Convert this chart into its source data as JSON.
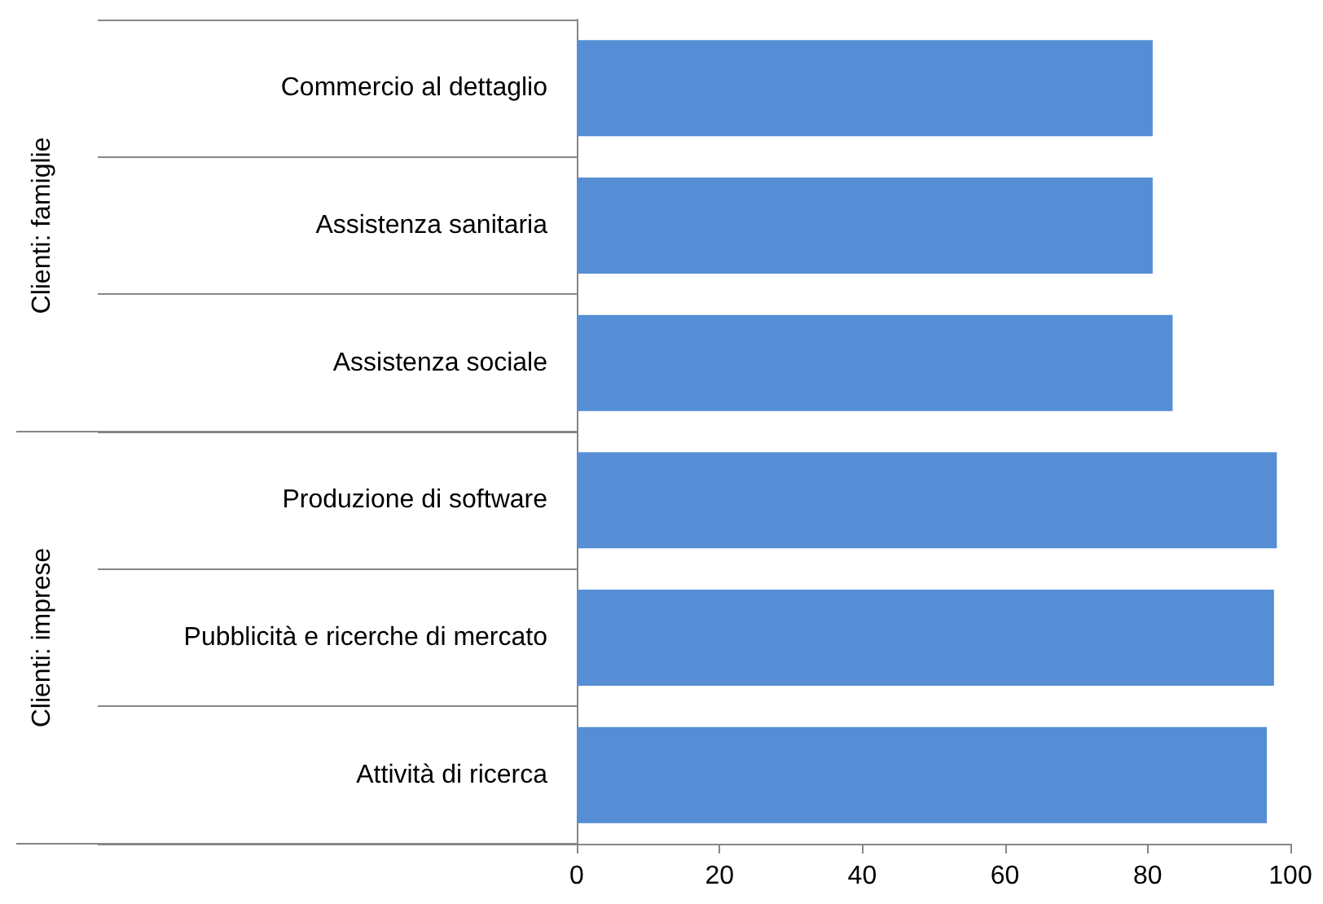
{
  "chart_data": {
    "type": "bar",
    "orientation": "horizontal",
    "categories": [
      "Commercio al dettaglio",
      "Assistenza sanitaria",
      "Assistenza sociale",
      "Produzione di software",
      "Pubblicità e ricerche di mercato",
      "Attività di ricerca"
    ],
    "values": [
      80.7,
      80.7,
      83.5,
      98.1,
      97.7,
      96.7
    ],
    "color": "#558ed5",
    "xlim": [
      0,
      100
    ],
    "xticks": [
      0,
      20,
      40,
      60,
      80,
      100
    ],
    "annotations": [
      "Clienti: famiglie",
      "Clienti: imprese"
    ]
  }
}
